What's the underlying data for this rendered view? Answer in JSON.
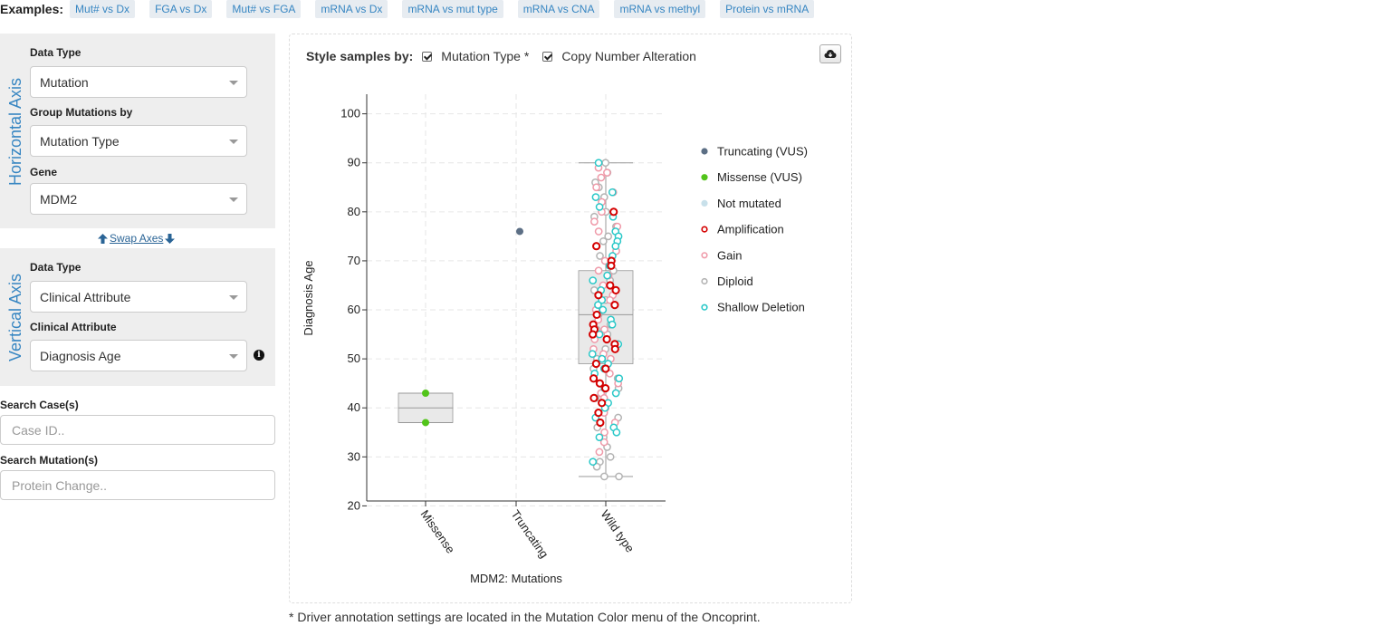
{
  "examples": {
    "label": "Examples:",
    "items": [
      "Mut# vs Dx",
      "FGA vs Dx",
      "Mut# vs FGA",
      "mRNA vs Dx",
      "mRNA vs mut type",
      "mRNA vs CNA",
      "mRNA vs methyl",
      "Protein vs mRNA"
    ]
  },
  "horizontal": {
    "title": "Horizontal Axis",
    "data_type_label": "Data Type",
    "data_type_value": "Mutation",
    "group_label": "Group Mutations by",
    "group_value": "Mutation Type",
    "gene_label": "Gene",
    "gene_value": "MDM2"
  },
  "swap_label": "Swap Axes",
  "vertical": {
    "title": "Vertical Axis",
    "data_type_label": "Data Type",
    "data_type_value": "Clinical Attribute",
    "attr_label": "Clinical Attribute",
    "attr_value": "Diagnosis Age"
  },
  "search": {
    "cases_label": "Search Case(s)",
    "cases_placeholder": "Case ID..",
    "mutations_label": "Search Mutation(s)",
    "mutations_placeholder": "Protein Change.."
  },
  "style": {
    "title": "Style samples by:",
    "opt1": "Mutation Type *",
    "opt2": "Copy Number Alteration"
  },
  "footnote": "* Driver annotation settings are located in the Mutation Color menu of the Oncoprint.",
  "chart_data": {
    "type": "scatter",
    "subtype": "box-strip",
    "xlabel": "MDM2: Mutations",
    "ylabel": "Diagnosis Age",
    "categories": [
      "Missense",
      "Truncating",
      "Wild type"
    ],
    "ylim": [
      21,
      104
    ],
    "yticks": [
      20,
      30,
      40,
      50,
      60,
      70,
      80,
      90,
      100
    ],
    "grid": true,
    "legend_position": "right",
    "legend": [
      {
        "name": "Truncating (VUS)",
        "fill": "#5c6f85",
        "stroke": "#5c6f85"
      },
      {
        "name": "Missense (VUS)",
        "fill": "#52c41a",
        "stroke": "#52c41a"
      },
      {
        "name": "Not mutated",
        "fill": "#c8e0ea",
        "stroke": "#c8e0ea"
      },
      {
        "name": "Amplification",
        "fill": "#ffffff",
        "stroke": "#d40000"
      },
      {
        "name": "Gain",
        "fill": "#ffffff",
        "stroke": "#ef9aa9"
      },
      {
        "name": "Diploid",
        "fill": "#ffffff",
        "stroke": "#b3b3b3"
      },
      {
        "name": "Shallow Deletion",
        "fill": "#ffffff",
        "stroke": "#2ac8c8"
      }
    ],
    "boxes": [
      {
        "category": "Missense",
        "min": 37,
        "q1": 37,
        "median": 40,
        "q3": 43,
        "max": 43
      },
      {
        "category": "Wild type",
        "min": 26,
        "q1": 49,
        "median": 59,
        "q3": 68,
        "max": 90
      }
    ],
    "points": {
      "Missense": [
        {
          "y": 43,
          "cls": "Missense (VUS)"
        },
        {
          "y": 37,
          "cls": "Missense (VUS)"
        }
      ],
      "Truncating": [
        {
          "y": 76,
          "cls": "Truncating (VUS)"
        }
      ],
      "Wild type": {
        "Amplification": [
          73,
          70,
          69,
          65,
          64,
          63,
          61,
          59,
          57,
          56,
          55,
          54,
          53,
          52,
          49,
          48,
          46,
          45,
          44,
          42,
          41,
          39,
          37,
          80
        ],
        "Shallow Deletion": [
          90,
          84,
          83,
          81,
          79,
          76,
          75,
          74,
          73,
          71,
          69,
          67,
          66,
          64,
          62,
          61,
          60,
          58,
          57,
          55,
          53,
          51,
          50,
          49,
          48,
          47,
          46,
          44,
          43,
          41,
          40,
          38,
          36,
          35,
          34,
          29
        ],
        "Gain": [
          89,
          88,
          87,
          85,
          84,
          82,
          80,
          78,
          77,
          76,
          72,
          70,
          68,
          67,
          65,
          63,
          62,
          60,
          58,
          56,
          54,
          52,
          51,
          50,
          47,
          45,
          43,
          42,
          40,
          39,
          37,
          35,
          33,
          31
        ],
        "Diploid": [
          90,
          88,
          86,
          85,
          83,
          80,
          79,
          77,
          75,
          74,
          71,
          68,
          66,
          64,
          62,
          59,
          57,
          56,
          55,
          52,
          50,
          48,
          46,
          44,
          42,
          41,
          38,
          36,
          34,
          32,
          30,
          29,
          28,
          26,
          26
        ]
      }
    }
  }
}
